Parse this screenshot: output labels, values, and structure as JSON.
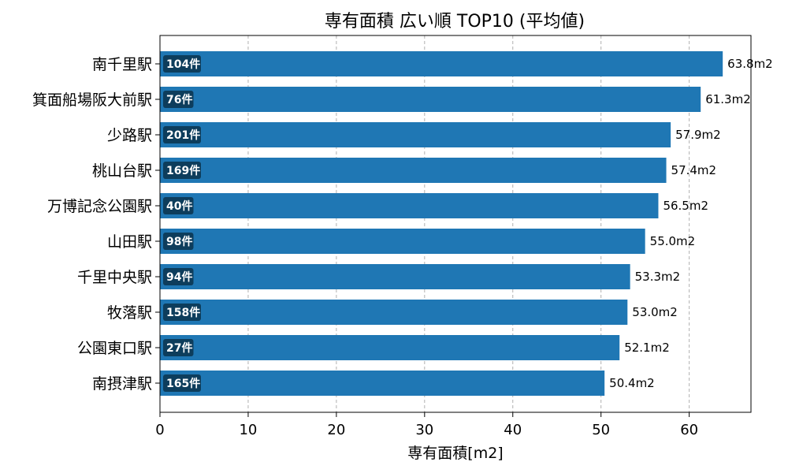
{
  "chart_data": {
    "type": "bar",
    "orientation": "horizontal",
    "title": "専有面積 広い順 TOP10 (平均値)",
    "xlabel": "専有面積[m2]",
    "ylabel": "",
    "xlim": [
      0,
      67
    ],
    "xticks": [
      0,
      10,
      20,
      30,
      40,
      50,
      60
    ],
    "grid": "x-dashed",
    "bar_color": "#1f77b4",
    "count_badge_color": "#0d3d5c",
    "categories": [
      "南千里駅",
      "箕面船場阪大前駅",
      "少路駅",
      "桃山台駅",
      "万博記念公園駅",
      "山田駅",
      "千里中央駅",
      "牧落駅",
      "公園東口駅",
      "南摂津駅"
    ],
    "values": [
      63.8,
      61.3,
      57.9,
      57.4,
      56.5,
      55.0,
      53.3,
      53.0,
      52.1,
      50.4
    ],
    "value_labels": [
      "63.8m2",
      "61.3m2",
      "57.9m2",
      "57.4m2",
      "56.5m2",
      "55.0m2",
      "53.3m2",
      "53.0m2",
      "52.1m2",
      "50.4m2"
    ],
    "counts": [
      "104件",
      "76件",
      "201件",
      "169件",
      "40件",
      "98件",
      "94件",
      "158件",
      "27件",
      "165件"
    ]
  }
}
